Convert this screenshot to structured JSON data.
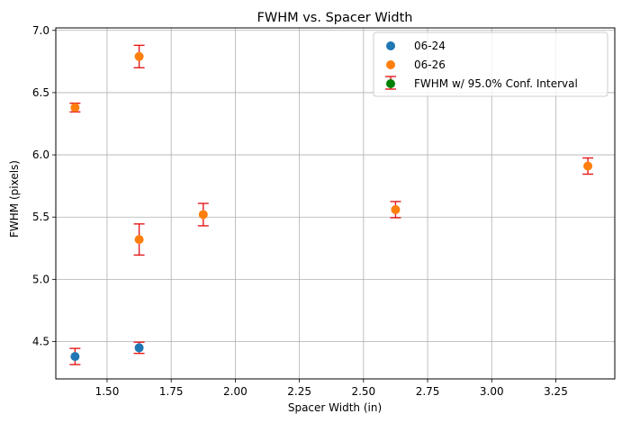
{
  "chart_data": {
    "type": "scatter",
    "title": "FWHM vs. Spacer Width",
    "xlabel": "Spacer Width (in)",
    "ylabel": "FWHM (pixels)",
    "xlim": [
      1.3,
      3.48
    ],
    "ylim": [
      4.2,
      7.02
    ],
    "xticks": [
      1.5,
      1.75,
      2.0,
      2.25,
      2.5,
      2.75,
      3.0,
      3.25
    ],
    "xtick_labels": [
      "1.50",
      "1.75",
      "2.00",
      "2.25",
      "2.50",
      "2.75",
      "3.00",
      "3.25"
    ],
    "yticks": [
      4.5,
      5.0,
      5.5,
      6.0,
      6.5,
      7.0
    ],
    "ytick_labels": [
      "4.5",
      "5.0",
      "5.5",
      "6.0",
      "6.5",
      "7.0"
    ],
    "grid": true,
    "legend_position": "top-right",
    "series": [
      {
        "name": "06-24",
        "color": "#1f77b4",
        "points": [
          {
            "x": 1.375,
            "y": 4.38,
            "err": 0.065
          },
          {
            "x": 1.625,
            "y": 4.45,
            "err": 0.045
          }
        ]
      },
      {
        "name": "06-26",
        "color": "#ff7f0e",
        "points": [
          {
            "x": 1.375,
            "y": 6.38,
            "err": 0.035
          },
          {
            "x": 1.625,
            "y": 6.79,
            "err": 0.09
          },
          {
            "x": 1.625,
            "y": 5.32,
            "err": 0.125
          },
          {
            "x": 1.875,
            "y": 5.52,
            "err": 0.09
          },
          {
            "x": 2.625,
            "y": 5.56,
            "err": 0.065
          },
          {
            "x": 3.375,
            "y": 5.91,
            "err": 0.065
          }
        ]
      }
    ],
    "errorbar": {
      "name": "FWHM w/ 95.0% Conf. Interval",
      "color": "#e41a1c",
      "marker_color": "#008000"
    }
  }
}
